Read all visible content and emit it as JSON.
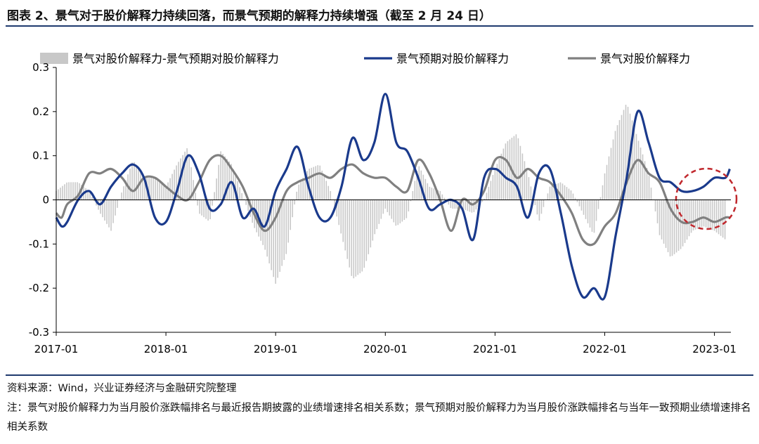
{
  "title": "图表 2、景气对于股价解释力持续回落，而景气预期的解释力持续增强（截至 2 月 24 日）",
  "source": "资料来源：Wind，兴业证券经济与金融研究院整理",
  "note": "注：景气对股价解释力为当月股价涨跌幅排名与最近报告期披露的业绩增速排名相关系数；景气预期对股价解释力为当月股价涨跌幅排名与当年一致预期业绩增速排名相关系数",
  "colors": {
    "diff": "#c8c8c8",
    "expect": "#1a3a8c",
    "actual": "#808080",
    "circle": "#c0282d"
  },
  "chart_data": {
    "type": "line",
    "x_start": "2017-01",
    "x_end": "2023-02",
    "ylim": [
      -0.3,
      0.3
    ],
    "yticks": [
      "0.3",
      "0.2",
      "0.1",
      "0",
      "-0.1",
      "-0.2",
      "-0.3"
    ],
    "xticks": [
      "2017-01",
      "2018-01",
      "2019-01",
      "2020-01",
      "2021-01",
      "2022-01",
      "2023-01"
    ],
    "legend_position": "top",
    "series": [
      {
        "name": "景气对股价解释力-景气预期对股价解释力",
        "render": "bar",
        "x": [
          2017.0,
          2017.1,
          2017.2,
          2017.3,
          2017.4,
          2017.5,
          2017.6,
          2017.7,
          2017.8,
          2017.9,
          2018.0,
          2018.1,
          2018.2,
          2018.3,
          2018.4,
          2018.5,
          2018.6,
          2018.7,
          2018.8,
          2018.9,
          2019.0,
          2019.1,
          2019.2,
          2019.3,
          2019.4,
          2019.5,
          2019.6,
          2019.7,
          2019.8,
          2019.9,
          2020.0,
          2020.1,
          2020.2,
          2020.3,
          2020.4,
          2020.5,
          2020.6,
          2020.7,
          2020.8,
          2020.9,
          2021.0,
          2021.1,
          2021.2,
          2021.3,
          2021.4,
          2021.5,
          2021.6,
          2021.7,
          2021.8,
          2021.9,
          2022.0,
          2022.1,
          2022.2,
          2022.3,
          2022.4,
          2022.5,
          2022.6,
          2022.7,
          2022.8,
          2022.9,
          2023.0,
          2023.1
        ],
        "values": [
          0.02,
          0.04,
          0.04,
          0.02,
          -0.03,
          -0.07,
          0.02,
          0.09,
          0.05,
          0.05,
          0.03,
          0.08,
          0.12,
          -0.03,
          -0.05,
          0.11,
          0.08,
          0.01,
          -0.06,
          -0.11,
          -0.19,
          -0.12,
          0.03,
          0.07,
          0.08,
          0.02,
          -0.08,
          -0.18,
          -0.16,
          -0.08,
          -0.02,
          -0.06,
          -0.04,
          0.08,
          0.03,
          0.02,
          -0.02,
          -0.02,
          -0.03,
          0.0,
          0.07,
          0.13,
          0.15,
          0.06,
          -0.05,
          0.03,
          0.04,
          0.02,
          -0.03,
          -0.08,
          0.06,
          0.16,
          0.22,
          0.14,
          0.06,
          -0.08,
          -0.13,
          -0.11,
          -0.07,
          -0.06,
          -0.07,
          -0.09
        ]
      },
      {
        "name": "景气预期对股价解释力",
        "render": "line",
        "x": [
          2017.0,
          2017.05,
          2017.1,
          2017.2,
          2017.3,
          2017.4,
          2017.5,
          2017.6,
          2017.7,
          2017.8,
          2017.9,
          2018.0,
          2018.1,
          2018.2,
          2018.3,
          2018.4,
          2018.5,
          2018.6,
          2018.7,
          2018.8,
          2018.9,
          2019.0,
          2019.1,
          2019.2,
          2019.3,
          2019.4,
          2019.5,
          2019.6,
          2019.7,
          2019.8,
          2019.9,
          2020.0,
          2020.1,
          2020.2,
          2020.3,
          2020.4,
          2020.5,
          2020.6,
          2020.7,
          2020.8,
          2020.9,
          2021.0,
          2021.1,
          2021.2,
          2021.3,
          2021.4,
          2021.5,
          2021.6,
          2021.7,
          2021.8,
          2021.9,
          2022.0,
          2022.1,
          2022.2,
          2022.3,
          2022.4,
          2022.5,
          2022.6,
          2022.7,
          2022.8,
          2022.9,
          2023.0,
          2023.1,
          2023.14
        ],
        "values": [
          -0.04,
          -0.06,
          -0.05,
          0.0,
          0.02,
          -0.01,
          0.03,
          0.06,
          0.08,
          0.05,
          -0.04,
          -0.05,
          0.02,
          0.1,
          0.06,
          -0.02,
          -0.01,
          0.04,
          -0.04,
          -0.02,
          -0.06,
          0.02,
          0.07,
          0.12,
          0.03,
          -0.04,
          -0.04,
          0.03,
          0.14,
          0.09,
          0.13,
          0.24,
          0.13,
          0.11,
          0.05,
          -0.02,
          -0.01,
          0.0,
          -0.02,
          -0.09,
          0.05,
          0.07,
          0.05,
          0.03,
          -0.04,
          0.06,
          0.07,
          -0.03,
          -0.15,
          -0.22,
          -0.2,
          -0.22,
          -0.08,
          0.05,
          0.2,
          0.13,
          0.05,
          0.04,
          0.02,
          0.02,
          0.03,
          0.05,
          0.05,
          0.07
        ]
      },
      {
        "name": "景气对股价解释力",
        "render": "line",
        "x": [
          2017.0,
          2017.05,
          2017.1,
          2017.2,
          2017.3,
          2017.4,
          2017.5,
          2017.6,
          2017.7,
          2017.8,
          2017.9,
          2018.0,
          2018.1,
          2018.2,
          2018.3,
          2018.4,
          2018.5,
          2018.6,
          2018.7,
          2018.8,
          2018.9,
          2019.0,
          2019.1,
          2019.2,
          2019.3,
          2019.4,
          2019.5,
          2019.6,
          2019.7,
          2019.8,
          2019.9,
          2020.0,
          2020.1,
          2020.2,
          2020.3,
          2020.4,
          2020.5,
          2020.6,
          2020.7,
          2020.8,
          2020.9,
          2021.0,
          2021.1,
          2021.2,
          2021.3,
          2021.4,
          2021.5,
          2021.6,
          2021.7,
          2021.8,
          2021.9,
          2022.0,
          2022.1,
          2022.2,
          2022.3,
          2022.4,
          2022.5,
          2022.6,
          2022.7,
          2022.8,
          2022.9,
          2023.0,
          2023.1,
          2023.14
        ],
        "values": [
          -0.03,
          -0.04,
          -0.01,
          0.01,
          0.06,
          0.06,
          0.07,
          0.05,
          0.02,
          0.05,
          0.05,
          0.03,
          0.01,
          0.0,
          0.04,
          0.09,
          0.1,
          0.07,
          0.03,
          -0.03,
          -0.07,
          -0.04,
          0.02,
          0.04,
          0.05,
          0.06,
          0.05,
          0.07,
          0.08,
          0.06,
          0.05,
          0.05,
          0.03,
          0.02,
          0.09,
          0.06,
          0.0,
          -0.07,
          0.0,
          -0.01,
          0.02,
          0.09,
          0.09,
          0.05,
          0.07,
          0.05,
          0.04,
          0.01,
          -0.03,
          -0.09,
          -0.1,
          -0.06,
          -0.03,
          0.04,
          0.09,
          0.06,
          0.04,
          -0.02,
          -0.05,
          -0.05,
          -0.04,
          -0.05,
          -0.04,
          -0.04
        ]
      }
    ]
  }
}
